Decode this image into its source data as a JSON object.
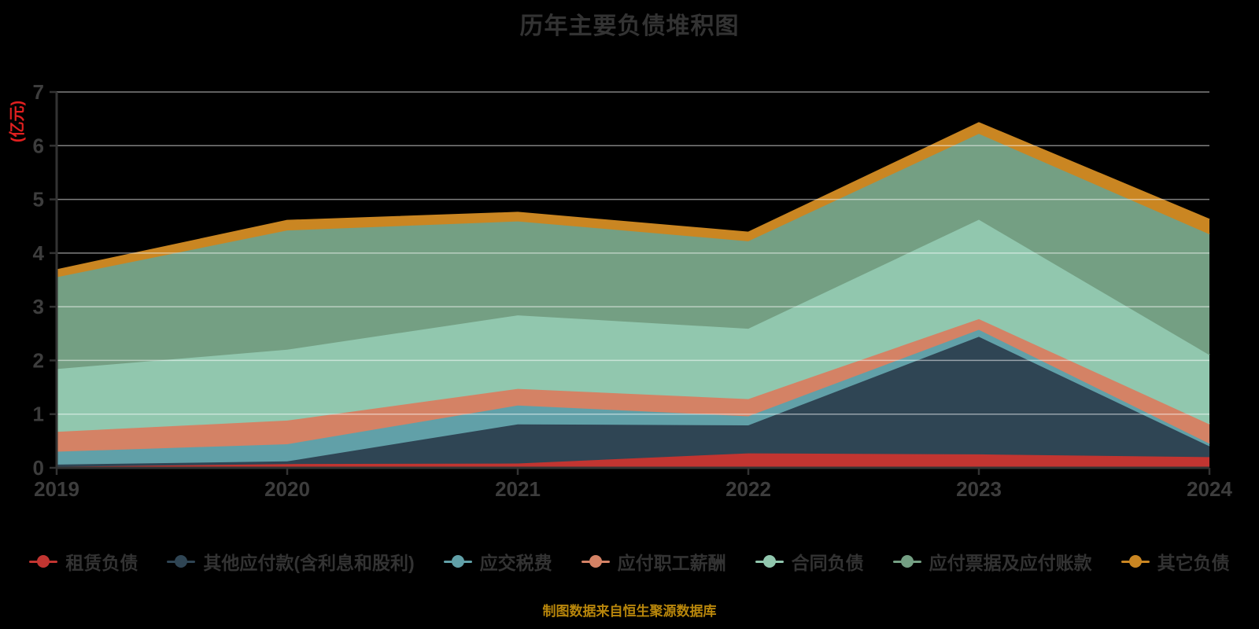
{
  "title": "历年主要负债堆积图",
  "caption": "制图数据来自恒生聚源数据库",
  "caption_color": "#b8860b",
  "title_color": "#333333",
  "axis": {
    "tick_label_color": "#3d3d3d",
    "axis_line_color": "#333333",
    "grid_line_color": "rgba(255,255,255,0.5)",
    "ylabel_color": "#e01f1f"
  },
  "chart_data": {
    "type": "area",
    "stacked": true,
    "title": "历年主要负债堆积图",
    "x": [
      "2019",
      "2020",
      "2021",
      "2022",
      "2023",
      "2024"
    ],
    "xlabel": "",
    "ylabel": "(亿元)",
    "ylim": [
      0,
      7
    ],
    "y_ticks": [
      0,
      1,
      2,
      3,
      4,
      5,
      6,
      7
    ],
    "grid": true,
    "legend_position": "bottom",
    "background": "#000000",
    "series": [
      {
        "name": "租赁负债",
        "color": "#c23531",
        "values": [
          0.02,
          0.07,
          0.08,
          0.27,
          0.25,
          0.2
        ]
      },
      {
        "name": "其他应付款(含利息和股利)",
        "color": "#2f4554",
        "values": [
          0.04,
          0.05,
          0.73,
          0.52,
          2.19,
          0.2
        ]
      },
      {
        "name": "应交税费",
        "color": "#61a0a8",
        "values": [
          0.24,
          0.32,
          0.35,
          0.17,
          0.13,
          0.05
        ]
      },
      {
        "name": "应付职工薪酬",
        "color": "#d48265",
        "values": [
          0.37,
          0.44,
          0.31,
          0.32,
          0.2,
          0.36
        ]
      },
      {
        "name": "合同负债",
        "color": "#91c7ae",
        "values": [
          1.17,
          1.32,
          1.37,
          1.31,
          1.85,
          1.29
        ]
      },
      {
        "name": "应付票据及应付账款",
        "color": "#749f83",
        "values": [
          1.71,
          2.22,
          1.75,
          1.63,
          1.6,
          2.25
        ]
      },
      {
        "name": "其它负债",
        "color": "#ca8622",
        "values": [
          0.13,
          0.18,
          0.16,
          0.16,
          0.2,
          0.27
        ]
      }
    ]
  }
}
